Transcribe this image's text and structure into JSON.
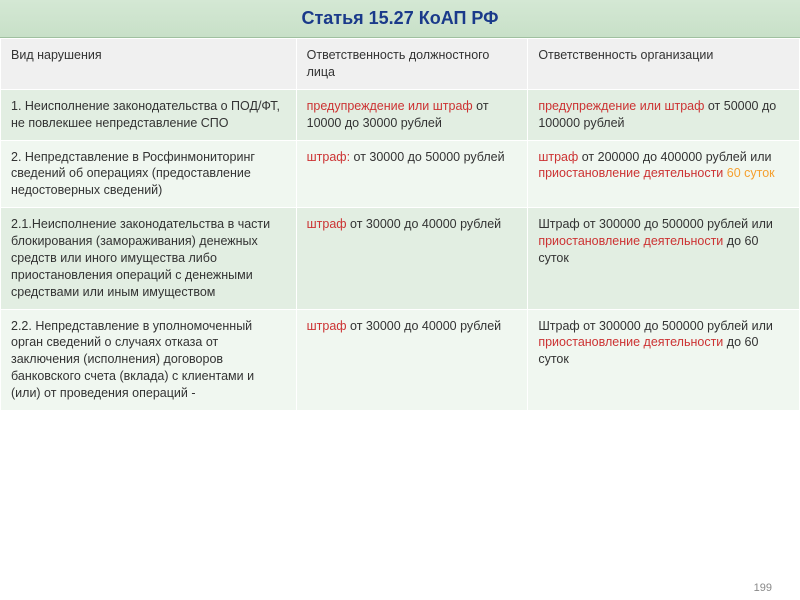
{
  "title": "Статья 15.27 КоАП РФ",
  "columns": {
    "violation": "Вид нарушения",
    "official": "Ответственность должностного лица",
    "org": "Ответственность организации"
  },
  "rows": [
    {
      "violation": "1. Неисполнение законодательства о ПОД/ФТ, не повлекшее непредставление СПО",
      "official_hl": "предупреждение или штраф",
      "official_rest": " от 10000 до 30000 рублей",
      "org_hl": "предупреждение или штраф",
      "org_rest": " от 50000 до 100000 рублей"
    },
    {
      "violation": "2. Непредставление в Росфинмониторинг сведений об операциях (предоставление недостоверных сведений)",
      "official_hl": "штраф:",
      "official_rest": " от 30000 до 50000 рублей",
      "org_hl": "штраф",
      "org_rest": " от 200000 до 400000 рублей или ",
      "org_hl2": "приостановление деятельности",
      "org_tail": " 60 суток"
    },
    {
      "violation": "2.1.Неисполнение законодательства в части блокирования (замораживания) денежных средств или иного имущества либо приостановления операций с денежными средствами или иным имуществом",
      "official_hl": "штраф",
      "official_rest": " от 30000 до 40000 рублей",
      "org_plain": "Штраф от 300000 до 500000 рублей или ",
      "org_hl2": "приостановление деятельности",
      "org_tail": " до 60 суток"
    },
    {
      "violation": "2.2. Непредставление в уполномоченный орган сведений о случаях отказа от заключения (исполнения) договоров банковского счета (вклада) с клиентами и (или) от проведения операций -",
      "official_hl": "штраф",
      "official_rest": " от 30000 до 40000 рублей",
      "org_plain": "Штраф от 300000 до 500000 рублей или ",
      "org_hl2": "приостановление деятельности",
      "org_tail": " до 60 суток"
    }
  ],
  "page_number": "199",
  "colors": {
    "title_text": "#1a3a8a",
    "header_bg_top": "#d4e8d4",
    "header_bg_bottom": "#c8e0c8",
    "row_even_bg": "#e2eee2",
    "row_odd_bg": "#f0f7f0",
    "highlight_red": "#cc3333",
    "highlight_orange": "#f5a030",
    "text": "#333333"
  },
  "font_sizes": {
    "title": 18,
    "body": 12.5
  },
  "table_structure": {
    "type": "table",
    "col_widths_pct": [
      37,
      29,
      34
    ],
    "border_color": "#ffffff"
  }
}
